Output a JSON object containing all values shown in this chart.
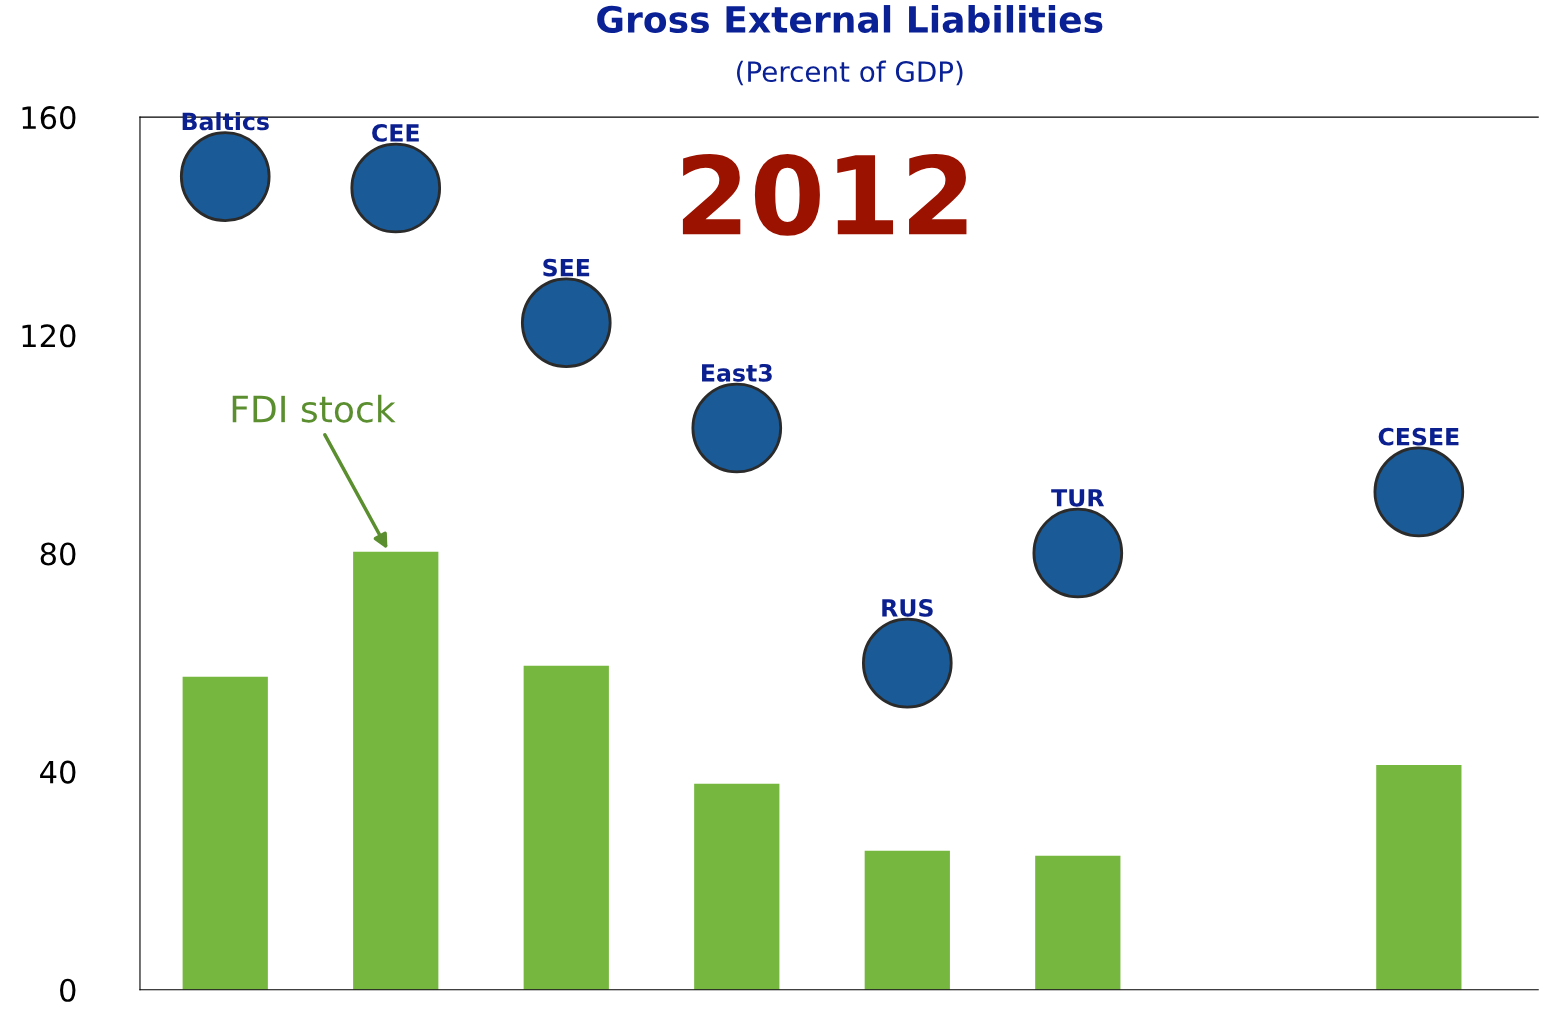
{
  "chart_data": {
    "type": "bar",
    "title": "Gross External Liabilities",
    "subtitle": "(Percent of GDP)",
    "categories": [
      "Baltics",
      "CEE",
      "SEE",
      "East3",
      "RUS",
      "TUR",
      null,
      "CESEE"
    ],
    "series": [
      {
        "color": "#76b83f",
        "values": [
          57.4,
          80.3,
          59.4,
          37.8,
          25.5,
          24.6,
          null,
          41.2
        ]
      },
      {
        "type": "scatter",
        "color": "#1a5a96",
        "values": [
          149.1,
          147.0,
          122.3,
          103.0,
          59.9,
          80.1,
          null,
          91.3
        ]
      }
    ],
    "annotations": [
      "FDI stock",
      "2012"
    ],
    "ylim": [
      0,
      160
    ],
    "yticks": [
      0,
      40,
      80,
      120,
      160
    ],
    "tick_labels": "y",
    "grid": false,
    "legend": false,
    "marker": "circle"
  }
}
